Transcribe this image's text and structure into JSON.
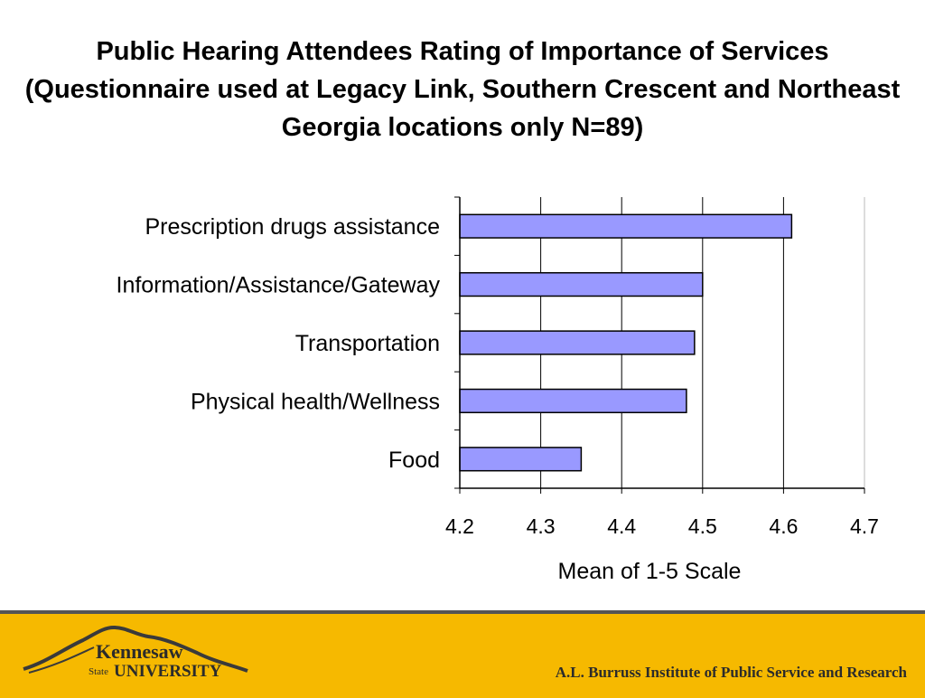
{
  "slide": {
    "title": "Public Hearing Attendees Rating of Importance of Services (Questionnaire used at Legacy Link, Southern Crescent and Northeast Georgia locations only N=89)"
  },
  "chart_data": {
    "type": "bar",
    "orientation": "horizontal",
    "categories": [
      "Prescription drugs assistance",
      "Information/Assistance/Gateway",
      "Transportation",
      "Physical health/Wellness",
      "Food"
    ],
    "values": [
      4.61,
      4.5,
      4.49,
      4.48,
      4.35
    ],
    "xlabel": "Mean of 1-5 Scale",
    "ylabel": "",
    "xlim": [
      4.2,
      4.7
    ],
    "xticks": [
      "4.2",
      "4.3",
      "4.4",
      "4.5",
      "4.6",
      "4.7"
    ],
    "grid": "vertical",
    "legend": "none",
    "bar_color": "#9999ff",
    "bar_edge_color": "#000000"
  },
  "footer": {
    "logo_line1": "Kennesaw",
    "logo_state": "State",
    "logo_univ": "UNIVERSITY",
    "institute": "A.L. Burruss Institute of Public Service and Research",
    "band_color": "#f6b900"
  }
}
